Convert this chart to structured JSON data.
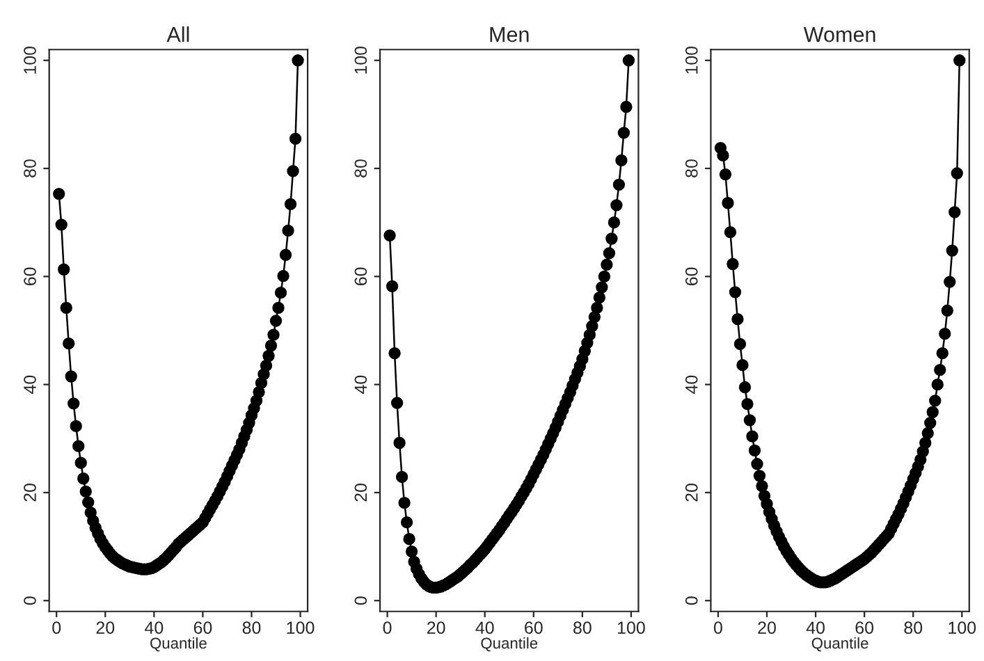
{
  "chart_data": [
    {
      "type": "line",
      "title": "All",
      "xlabel": "Quantile",
      "xlim": [
        -3,
        103
      ],
      "ylim": [
        -2,
        102
      ],
      "xticks": [
        0,
        20,
        40,
        60,
        80,
        100
      ],
      "yticks": [
        0,
        20,
        40,
        60,
        80,
        100
      ],
      "marker": "circle",
      "grid": false,
      "legend": false,
      "x": [
        1,
        2,
        3,
        4,
        5,
        6,
        7,
        8,
        9,
        10,
        11,
        12,
        13,
        14,
        15,
        16,
        17,
        18,
        19,
        20,
        21,
        22,
        23,
        24,
        25,
        26,
        27,
        28,
        29,
        30,
        31,
        32,
        33,
        34,
        35,
        36,
        37,
        38,
        39,
        40,
        41,
        42,
        43,
        44,
        45,
        46,
        47,
        48,
        49,
        50,
        51,
        52,
        53,
        54,
        55,
        56,
        57,
        58,
        59,
        60,
        61,
        62,
        63,
        64,
        65,
        66,
        67,
        68,
        69,
        70,
        71,
        72,
        73,
        74,
        75,
        76,
        77,
        78,
        79,
        80,
        81,
        82,
        83,
        84,
        85,
        86,
        87,
        88,
        89,
        90,
        91,
        92,
        93,
        94,
        95,
        96,
        97,
        98,
        99
      ],
      "series": [
        {
          "color": "#000000",
          "values": [
            75.3,
            69.6,
            61.3,
            54.2,
            47.6,
            41.5,
            36.5,
            32.3,
            28.6,
            25.5,
            22.6,
            20.2,
            18.2,
            16.3,
            14.8,
            13.5,
            12.4,
            11.4,
            10.6,
            9.9,
            9.3,
            8.7,
            8.2,
            7.8,
            7.5,
            7.2,
            6.9,
            6.7,
            6.5,
            6.3,
            6.2,
            6.1,
            6.0,
            5.9,
            5.8,
            5.8,
            5.8,
            5.9,
            6.0,
            6.2,
            6.5,
            6.8,
            7.1,
            7.5,
            7.9,
            8.4,
            8.9,
            9.4,
            9.9,
            10.5,
            10.9,
            11.3,
            11.7,
            12.1,
            12.5,
            12.9,
            13.3,
            13.7,
            14.1,
            14.5,
            15.3,
            16.1,
            16.9,
            17.7,
            18.5,
            19.3,
            20.2,
            21.1,
            22.0,
            23.0,
            24.0,
            25.0,
            26.0,
            27.0,
            28.0,
            29.2,
            30.4,
            31.6,
            32.9,
            34.3,
            35.6,
            37.0,
            38.6,
            40.3,
            41.9,
            43.5,
            45.3,
            47.2,
            49.2,
            51.8,
            54.2,
            57.0,
            60.1,
            64.0,
            68.5,
            73.4,
            79.5,
            85.5,
            100
          ]
        }
      ]
    },
    {
      "type": "line",
      "title": "Men",
      "xlabel": "Quantile",
      "xlim": [
        -3,
        103
      ],
      "ylim": [
        -2,
        102
      ],
      "xticks": [
        0,
        20,
        40,
        60,
        80,
        100
      ],
      "yticks": [
        0,
        20,
        40,
        60,
        80,
        100
      ],
      "marker": "circle",
      "grid": false,
      "legend": false,
      "x": [
        1,
        2,
        3,
        4,
        5,
        6,
        7,
        8,
        9,
        10,
        11,
        12,
        13,
        14,
        15,
        16,
        17,
        18,
        19,
        20,
        21,
        22,
        23,
        24,
        25,
        26,
        27,
        28,
        29,
        30,
        31,
        32,
        33,
        34,
        35,
        36,
        37,
        38,
        39,
        40,
        41,
        42,
        43,
        44,
        45,
        46,
        47,
        48,
        49,
        50,
        51,
        52,
        53,
        54,
        55,
        56,
        57,
        58,
        59,
        60,
        61,
        62,
        63,
        64,
        65,
        66,
        67,
        68,
        69,
        70,
        71,
        72,
        73,
        74,
        75,
        76,
        77,
        78,
        79,
        80,
        81,
        82,
        83,
        84,
        85,
        86,
        87,
        88,
        89,
        90,
        91,
        92,
        93,
        94,
        95,
        96,
        97,
        98,
        99
      ],
      "series": [
        {
          "color": "#000000",
          "values": [
            67.6,
            58.2,
            45.8,
            36.6,
            29.2,
            22.9,
            18.1,
            14.5,
            11.4,
            9.1,
            7.2,
            5.9,
            4.9,
            4.1,
            3.5,
            3.0,
            2.7,
            2.5,
            2.4,
            2.4,
            2.5,
            2.6,
            2.8,
            3.0,
            3.3,
            3.6,
            3.9,
            4.2,
            4.5,
            4.9,
            5.3,
            5.7,
            6.1,
            6.6,
            7.0,
            7.5,
            8.0,
            8.5,
            9.0,
            9.5,
            10.1,
            10.7,
            11.3,
            11.9,
            12.5,
            13.1,
            13.8,
            14.4,
            15.1,
            15.8,
            16.4,
            17.1,
            17.8,
            18.5,
            19.3,
            20.0,
            20.8,
            21.6,
            22.5,
            23.4,
            24.3,
            25.2,
            26.1,
            27.0,
            28.0,
            29.0,
            30.0,
            31.0,
            32.0,
            33.1,
            34.2,
            35.3,
            36.4,
            37.5,
            38.6,
            39.8,
            41.0,
            42.2,
            43.4,
            44.7,
            46.2,
            47.7,
            49.2,
            50.8,
            52.5,
            54.2,
            56.1,
            58.0,
            60.0,
            62.2,
            64.3,
            67.0,
            70.0,
            73.2,
            77.0,
            81.5,
            86.6,
            91.4,
            100
          ]
        }
      ]
    },
    {
      "type": "line",
      "title": "Women",
      "xlabel": "Quantile",
      "xlim": [
        -3,
        103
      ],
      "ylim": [
        -2,
        102
      ],
      "xticks": [
        0,
        20,
        40,
        60,
        80,
        100
      ],
      "yticks": [
        0,
        20,
        40,
        60,
        80,
        100
      ],
      "marker": "circle",
      "grid": false,
      "legend": false,
      "x": [
        1,
        2,
        3,
        4,
        5,
        6,
        7,
        8,
        9,
        10,
        11,
        12,
        13,
        14,
        15,
        16,
        17,
        18,
        19,
        20,
        21,
        22,
        23,
        24,
        25,
        26,
        27,
        28,
        29,
        30,
        31,
        32,
        33,
        34,
        35,
        36,
        37,
        38,
        39,
        40,
        41,
        42,
        43,
        44,
        45,
        46,
        47,
        48,
        49,
        50,
        51,
        52,
        53,
        54,
        55,
        56,
        57,
        58,
        59,
        60,
        61,
        62,
        63,
        64,
        65,
        66,
        67,
        68,
        69,
        70,
        71,
        72,
        73,
        74,
        75,
        76,
        77,
        78,
        79,
        80,
        81,
        82,
        83,
        84,
        85,
        86,
        87,
        88,
        89,
        90,
        91,
        92,
        93,
        94,
        95,
        96,
        97,
        98,
        99
      ],
      "series": [
        {
          "color": "#000000",
          "values": [
            83.8,
            82.4,
            78.9,
            73.6,
            68.2,
            62.3,
            57.1,
            52.1,
            47.5,
            43.6,
            39.5,
            36.4,
            33.4,
            30.4,
            27.8,
            25.3,
            23.1,
            21.2,
            19.4,
            17.9,
            16.4,
            15.1,
            13.9,
            12.8,
            11.8,
            10.9,
            10.0,
            9.2,
            8.5,
            7.8,
            7.2,
            6.6,
            6.1,
            5.6,
            5.2,
            4.8,
            4.5,
            4.2,
            3.9,
            3.7,
            3.5,
            3.4,
            3.4,
            3.4,
            3.5,
            3.7,
            3.9,
            4.1,
            4.4,
            4.7,
            5.0,
            5.3,
            5.6,
            5.9,
            6.2,
            6.5,
            6.8,
            7.1,
            7.4,
            7.7,
            8.1,
            8.5,
            8.9,
            9.4,
            9.9,
            10.4,
            10.9,
            11.4,
            11.9,
            12.4,
            13.3,
            14.2,
            15.1,
            16.0,
            17.0,
            18.0,
            19.1,
            20.2,
            21.3,
            22.5,
            23.6,
            24.8,
            26.1,
            27.6,
            29.2,
            31.0,
            32.9,
            34.9,
            37.0,
            40.0,
            42.7,
            45.8,
            49.4,
            53.7,
            59.0,
            64.8,
            71.9,
            79.1,
            100
          ]
        }
      ]
    }
  ]
}
